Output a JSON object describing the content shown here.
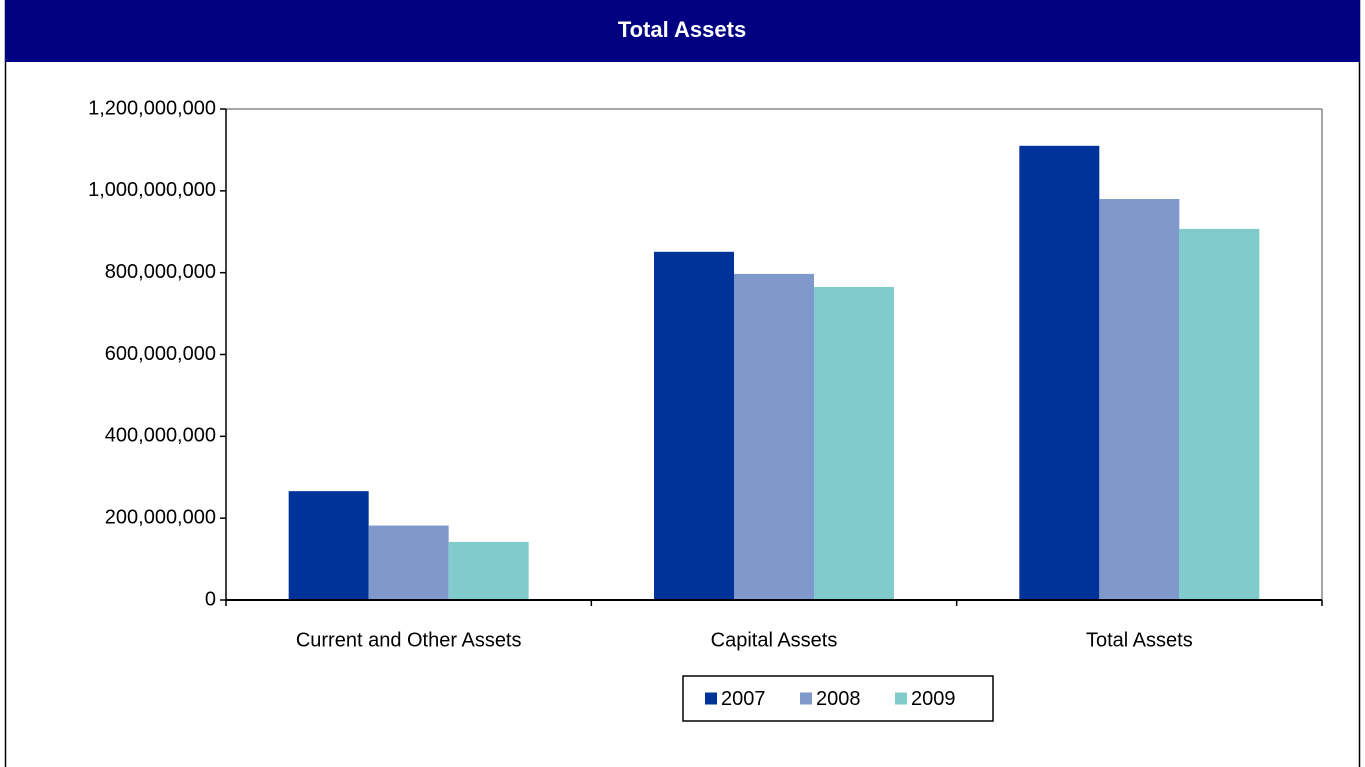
{
  "chart_data": {
    "type": "bar",
    "title": "Total Assets",
    "categories": [
      "Current and Other Assets",
      "Capital Assets",
      "Total Assets"
    ],
    "series": [
      {
        "name": "2007",
        "color": "#003399",
        "values": [
          266000000,
          851000000,
          1110000000
        ]
      },
      {
        "name": "2008",
        "color": "#8099cc",
        "values": [
          182000000,
          797000000,
          980000000
        ]
      },
      {
        "name": "2009",
        "color": "#80cccc",
        "values": [
          142000000,
          765000000,
          907000000
        ]
      }
    ],
    "ylim": [
      0,
      1200000000
    ],
    "yticks": [
      0,
      {
        "value": 200000000,
        "label": "200,000,000"
      },
      {
        "value": 400000000,
        "label": "400,000,000"
      },
      {
        "value": 600000000,
        "label": "600,000,000"
      },
      {
        "value": 800000000,
        "label": "800,000,000"
      },
      {
        "value": 1000000000,
        "label": "1,000,000,000"
      },
      {
        "value": 1200000000,
        "label": "1,200,000,000"
      }
    ],
    "legend": "bottom"
  }
}
